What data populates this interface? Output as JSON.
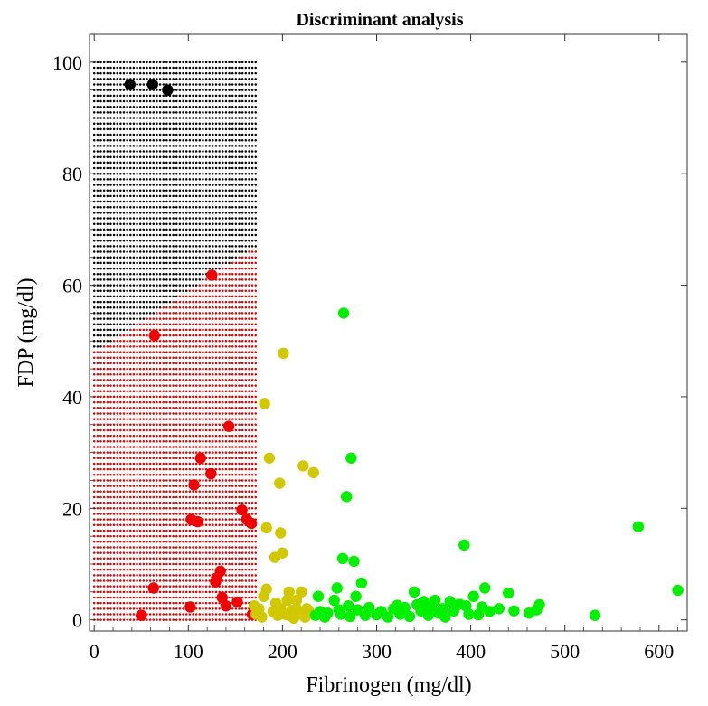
{
  "chart_data": {
    "type": "scatter",
    "title": "Discriminant analysis",
    "xlabel": "Fibrinogen (mg/dl)",
    "ylabel": "FDP (mg/dl)",
    "xlim": [
      -5,
      630
    ],
    "ylim": [
      -2,
      105
    ],
    "xticks": [
      0,
      100,
      200,
      300,
      400,
      500,
      600
    ],
    "yticks": [
      0,
      20,
      40,
      60,
      80,
      100
    ],
    "grid": false,
    "legend": "none",
    "background_regions": {
      "x_range": [
        0,
        172
      ],
      "y_range": [
        0,
        100
      ],
      "x_step": 3.5,
      "y_step": 1,
      "boundary": {
        "x0": 0,
        "y0": 48,
        "x1": 172,
        "y1": 67
      },
      "upper_color": "#000000",
      "lower_color": "#e00000"
    },
    "series": [
      {
        "color": "#000000",
        "points": [
          [
            38,
            96
          ],
          [
            62,
            96
          ],
          [
            78,
            95
          ]
        ]
      },
      {
        "color": "#f00000",
        "points": [
          [
            50,
            0.8
          ],
          [
            63,
            5.7
          ],
          [
            102,
            2.3
          ],
          [
            103,
            18
          ],
          [
            106,
            24.2
          ],
          [
            110,
            17.6
          ],
          [
            113,
            29
          ],
          [
            124,
            26.2
          ],
          [
            125,
            61.8
          ],
          [
            129,
            6.8
          ],
          [
            130,
            7.5
          ],
          [
            134,
            8.7
          ],
          [
            136,
            4
          ],
          [
            140,
            2.5
          ],
          [
            143,
            34.7
          ],
          [
            152,
            3.2
          ],
          [
            157,
            19.7
          ],
          [
            162,
            18
          ],
          [
            167,
            17.3
          ],
          [
            168,
            1
          ],
          [
            64,
            51
          ]
        ]
      },
      {
        "color": "#d2c800",
        "points": [
          [
            170,
            2.5
          ],
          [
            172,
            1
          ],
          [
            175,
            2
          ],
          [
            178,
            0.5
          ],
          [
            180,
            4.2
          ],
          [
            181,
            38.8
          ],
          [
            183,
            16.5
          ],
          [
            183,
            5.5
          ],
          [
            186,
            29
          ],
          [
            190,
            1.5
          ],
          [
            192,
            11.2
          ],
          [
            193,
            3
          ],
          [
            195,
            0.8
          ],
          [
            197,
            24.5
          ],
          [
            198,
            15.6
          ],
          [
            198,
            2
          ],
          [
            200,
            12
          ],
          [
            201,
            47.8
          ],
          [
            203,
            1
          ],
          [
            205,
            3.5
          ],
          [
            207,
            5
          ],
          [
            210,
            1.7
          ],
          [
            212,
            0.3
          ],
          [
            215,
            2
          ],
          [
            217,
            1
          ],
          [
            220,
            5
          ],
          [
            222,
            27.6
          ],
          [
            224,
            0.5
          ],
          [
            226,
            2
          ],
          [
            228,
            1.5
          ],
          [
            233,
            26.4
          ],
          [
            207,
            0.8
          ],
          [
            215,
            3.5
          ]
        ]
      },
      {
        "color": "#00f000",
        "points": [
          [
            235,
            0.8
          ],
          [
            238,
            4.2
          ],
          [
            240,
            1.5
          ],
          [
            245,
            0.5
          ],
          [
            248,
            1.2
          ],
          [
            255,
            3.5
          ],
          [
            258,
            5.7
          ],
          [
            262,
            1
          ],
          [
            264,
            11
          ],
          [
            265,
            55
          ],
          [
            268,
            22.1
          ],
          [
            270,
            2.5
          ],
          [
            272,
            0.6
          ],
          [
            273,
            29
          ],
          [
            276,
            10.5
          ],
          [
            278,
            4.2
          ],
          [
            280,
            1.8
          ],
          [
            284,
            6.6
          ],
          [
            288,
            0.8
          ],
          [
            292,
            2.2
          ],
          [
            305,
            1.5
          ],
          [
            312,
            0.5
          ],
          [
            318,
            2
          ],
          [
            325,
            1
          ],
          [
            330,
            2.2
          ],
          [
            335,
            0.6
          ],
          [
            340,
            5
          ],
          [
            343,
            2.7
          ],
          [
            347,
            1.6
          ],
          [
            350,
            3.3
          ],
          [
            355,
            0.8
          ],
          [
            358,
            2.4
          ],
          [
            362,
            3.5
          ],
          [
            366,
            1.2
          ],
          [
            370,
            2
          ],
          [
            373,
            0.5
          ],
          [
            378,
            3.3
          ],
          [
            382,
            1.6
          ],
          [
            388,
            2.8
          ],
          [
            393,
            13.4
          ],
          [
            395,
            2.5
          ],
          [
            398,
            1
          ],
          [
            403,
            4.2
          ],
          [
            408,
            0.9
          ],
          [
            412,
            2.3
          ],
          [
            415,
            5.7
          ],
          [
            420,
            1.5
          ],
          [
            430,
            2
          ],
          [
            440,
            4.8
          ],
          [
            446,
            1.6
          ],
          [
            462,
            1.2
          ],
          [
            470,
            1.8
          ],
          [
            473,
            2.7
          ],
          [
            532,
            0.8
          ],
          [
            578,
            16.7
          ],
          [
            620,
            5.3
          ],
          [
            260,
            1.8
          ],
          [
            300,
            0.9
          ],
          [
            322,
            2.6
          ],
          [
            352,
            1.9
          ]
        ]
      }
    ]
  }
}
